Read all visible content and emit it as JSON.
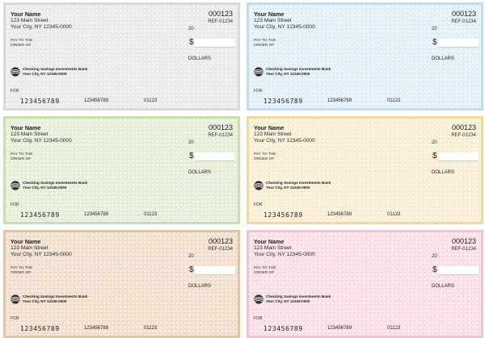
{
  "checks": [
    {
      "theme": "gray",
      "account_name": "Your Name",
      "address_line1": "123 Main Street",
      "address_line2": "Your City, NY 12345-0000",
      "check_number": "000123",
      "reference": "REF-01234",
      "date_prefix": "20",
      "pay_to_label_1": "PAY TO THE",
      "pay_to_label_2": "ORDER OF",
      "currency_symbol": "$",
      "amount_words_label": "DOLLARS",
      "bank_name": "Checking Savings Investments Bank",
      "bank_address": "Your City, NY 12345-0000",
      "memo_label": "FOR",
      "micr_routing": "123456789",
      "micr_account": "123456789",
      "micr_check": "01123"
    },
    {
      "theme": "blue",
      "account_name": "Your Name",
      "address_line1": "123 Main Street",
      "address_line2": "Your City, NY 12345-0000",
      "check_number": "000123",
      "reference": "REF-01234",
      "date_prefix": "20",
      "pay_to_label_1": "PAY TO THE",
      "pay_to_label_2": "ORDER OF",
      "currency_symbol": "$",
      "amount_words_label": "DOLLARS",
      "bank_name": "Checking Savings Investments Bank",
      "bank_address": "Your City, NY 12345-0000",
      "memo_label": "FOR",
      "micr_routing": "123456789",
      "micr_account": "123456789",
      "micr_check": "01123"
    },
    {
      "theme": "green",
      "account_name": "Your Name",
      "address_line1": "123 Main Street",
      "address_line2": "Your City, NY 12345-0000",
      "check_number": "000123",
      "reference": "REF-01234",
      "date_prefix": "20",
      "pay_to_label_1": "PAY TO THE",
      "pay_to_label_2": "ORDER OF",
      "currency_symbol": "$",
      "amount_words_label": "DOLLARS",
      "bank_name": "Checking Savings Investments Bank",
      "bank_address": "Your City, NY 12345-0000",
      "memo_label": "FOR",
      "micr_routing": "123456789",
      "micr_account": "123456789",
      "micr_check": "01123"
    },
    {
      "theme": "yellow",
      "account_name": "Your Name",
      "address_line1": "123 Main Street",
      "address_line2": "Your City, NY 12345-0000",
      "check_number": "000123",
      "reference": "REF-01234",
      "date_prefix": "20",
      "pay_to_label_1": "PAY TO THE",
      "pay_to_label_2": "ORDER OF",
      "currency_symbol": "$",
      "amount_words_label": "DOLLARS",
      "bank_name": "Checking Savings Investments Bank",
      "bank_address": "Your City, NY 12345-0000",
      "memo_label": "FOR",
      "micr_routing": "123456789",
      "micr_account": "123456789",
      "micr_check": "01123"
    },
    {
      "theme": "tan",
      "account_name": "Your Name",
      "address_line1": "123 Main Street",
      "address_line2": "Your City, NY 12345-0000",
      "check_number": "000123",
      "reference": "REF-01234",
      "date_prefix": "20",
      "pay_to_label_1": "PAY TO THE",
      "pay_to_label_2": "ORDER OF",
      "currency_symbol": "$",
      "amount_words_label": "DOLLARS",
      "bank_name": "Checking Savings Investments Bank",
      "bank_address": "Your City, NY 12345-0000",
      "memo_label": "FOR",
      "micr_routing": "123456789",
      "micr_account": "123456789",
      "micr_check": "01123"
    },
    {
      "theme": "pink",
      "account_name": "Your Name",
      "address_line1": "123 Main Street",
      "address_line2": "Your City, NY 12345-0000",
      "check_number": "000123",
      "reference": "REF-01234",
      "date_prefix": "20",
      "pay_to_label_1": "PAY TO THE",
      "pay_to_label_2": "ORDER OF",
      "currency_symbol": "$",
      "amount_words_label": "DOLLARS",
      "bank_name": "Checking Savings Investments Bank",
      "bank_address": "Your City, NY 12345-0000",
      "memo_label": "FOR",
      "micr_routing": "123456789",
      "micr_account": "123456789",
      "micr_check": "01123"
    }
  ],
  "theme_colors": {
    "gray": "#ececec",
    "blue": "#e3f1fa",
    "green": "#e6f0d8",
    "yellow": "#fbefd4",
    "tan": "#f3dfcc",
    "pink": "#fbdfe6"
  },
  "icons": {
    "bank_logo": "bank-globe-icon"
  }
}
